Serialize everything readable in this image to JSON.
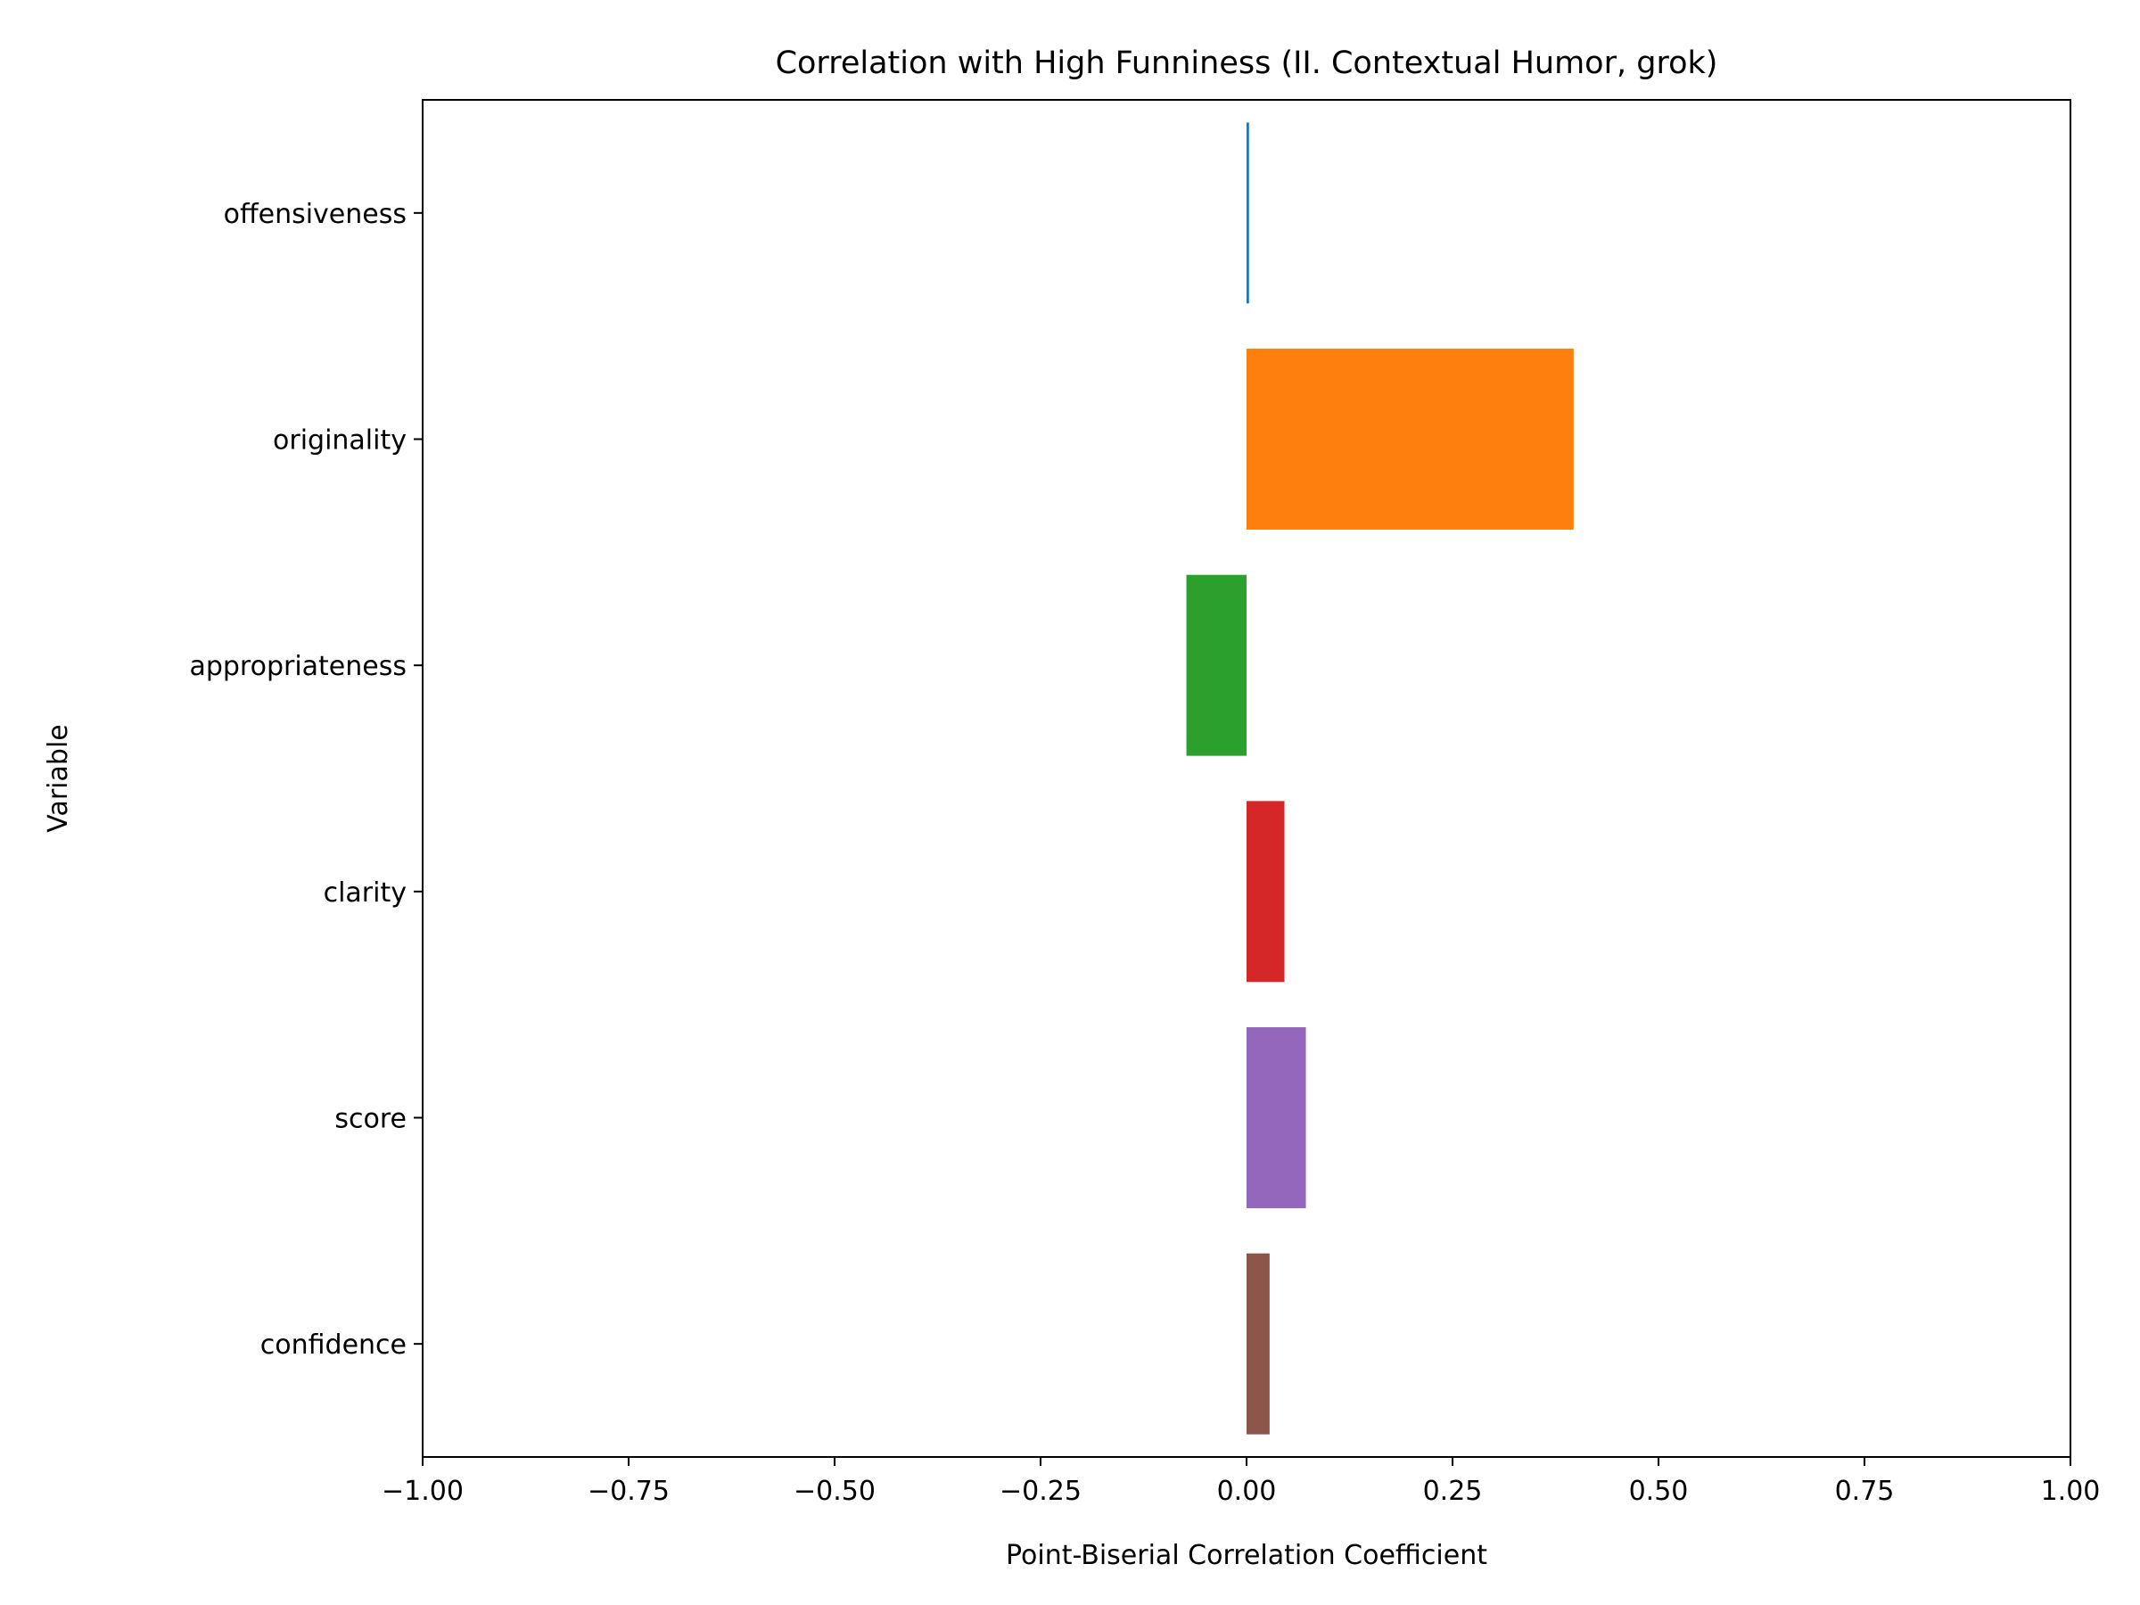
{
  "chart_data": {
    "type": "bar",
    "orientation": "horizontal",
    "title": "Correlation with High Funniness (II. Contextual Humor, grok)",
    "xlabel": "Point-Biserial Correlation Coefficient",
    "ylabel": "Variable",
    "xlim": [
      -1.0,
      1.0
    ],
    "xticks": [
      -1.0,
      -0.75,
      -0.5,
      -0.25,
      0.0,
      0.25,
      0.5,
      0.75,
      1.0
    ],
    "xtick_labels": [
      "−1.00",
      "−0.75",
      "−0.50",
      "−0.25",
      "0.00",
      "0.25",
      "0.50",
      "0.75",
      "1.00"
    ],
    "categories": [
      "offensiveness",
      "originality",
      "appropriateness",
      "clarity",
      "score",
      "confidence"
    ],
    "values": [
      0.003,
      0.397,
      -0.073,
      0.046,
      0.072,
      0.028
    ],
    "colors": [
      "#1f77b4",
      "#ff7f0e",
      "#2ca02c",
      "#d62728",
      "#9467bd",
      "#8c564b"
    ],
    "grid": false,
    "legend": "none"
  }
}
